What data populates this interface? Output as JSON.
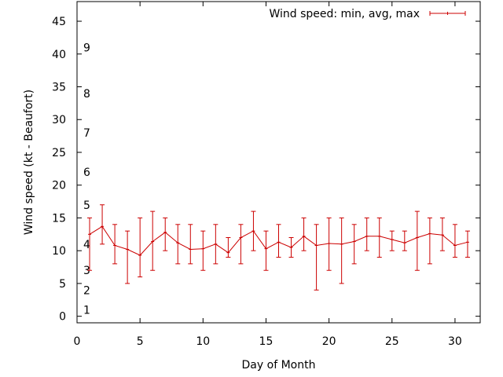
{
  "chart_data": {
    "type": "line",
    "title": "",
    "xlabel": "Day of Month",
    "ylabel": "Wind speed (kt - Beaufort)",
    "xlim": [
      0,
      32
    ],
    "ylim": [
      -1,
      48
    ],
    "xticks": [
      0,
      5,
      10,
      15,
      20,
      25,
      30
    ],
    "yticks": [
      0,
      5,
      10,
      15,
      20,
      25,
      30,
      35,
      40,
      45
    ],
    "beaufort_labels": [
      {
        "label": "1",
        "y": 1
      },
      {
        "label": "2",
        "y": 4
      },
      {
        "label": "3",
        "y": 7
      },
      {
        "label": "4",
        "y": 11
      },
      {
        "label": "5",
        "y": 17
      },
      {
        "label": "6",
        "y": 22
      },
      {
        "label": "7",
        "y": 28
      },
      {
        "label": "8",
        "y": 34
      },
      {
        "label": "9",
        "y": 41
      }
    ],
    "series": [
      {
        "name": "Wind speed: min, avg, max",
        "color": "#cc0000",
        "x": [
          1,
          2,
          3,
          4,
          5,
          6,
          7,
          8,
          9,
          10,
          11,
          12,
          13,
          14,
          15,
          16,
          17,
          18,
          19,
          20,
          21,
          22,
          23,
          24,
          25,
          26,
          27,
          28,
          29,
          30,
          31
        ],
        "y": [
          12.5,
          13.7,
          10.8,
          10.2,
          9.3,
          11.4,
          12.8,
          11.2,
          10.2,
          10.3,
          11.0,
          9.7,
          12.0,
          13.0,
          10.3,
          11.3,
          10.5,
          12.2,
          10.8,
          11.1,
          11.0,
          11.4,
          12.2,
          12.2,
          11.7,
          11.2,
          12.0,
          12.6,
          12.4,
          10.8,
          11.3
        ],
        "min": [
          7,
          11,
          8,
          5,
          6,
          7,
          10,
          8,
          8,
          7,
          8,
          9,
          8,
          10,
          7,
          9,
          9,
          10,
          4,
          7,
          5,
          8,
          10,
          9,
          10,
          10,
          7,
          8,
          10,
          9,
          9
        ],
        "max": [
          15,
          17,
          14,
          13,
          15,
          16,
          15,
          14,
          14,
          13,
          14,
          12,
          14,
          16,
          13,
          14,
          12,
          15,
          14,
          15,
          15,
          14,
          15,
          15,
          13,
          13,
          16,
          15,
          15,
          14,
          13
        ]
      }
    ],
    "grid": false,
    "legend_position": "top-right"
  }
}
